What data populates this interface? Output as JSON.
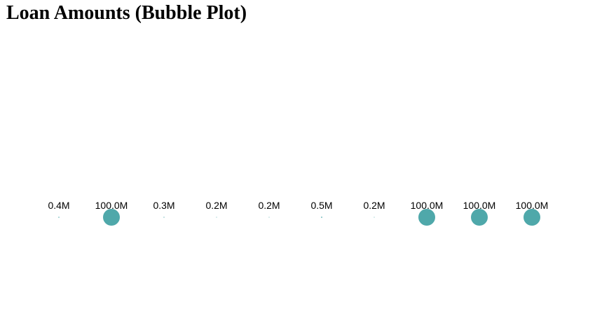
{
  "page": {
    "title": "Loan Amounts (Bubble Plot)"
  },
  "colors": {
    "bubble": "#4fa8aa",
    "text": "#000000",
    "background": "#ffffff"
  },
  "chart_data": {
    "type": "scatter",
    "title": "Loan Amounts (Bubble Plot)",
    "xlabel": "",
    "ylabel": "",
    "grid": false,
    "legend": "none",
    "points": [
      {
        "label": "0.4M",
        "value": 0.4
      },
      {
        "label": "100.0M",
        "value": 100.0
      },
      {
        "label": "0.3M",
        "value": 0.3
      },
      {
        "label": "0.2M",
        "value": 0.2
      },
      {
        "label": "0.2M",
        "value": 0.2
      },
      {
        "label": "0.5M",
        "value": 0.5
      },
      {
        "label": "0.2M",
        "value": 0.2
      },
      {
        "label": "100.0M",
        "value": 100.0
      },
      {
        "label": "100.0M",
        "value": 100.0
      },
      {
        "label": "100.0M",
        "value": 100.0
      }
    ]
  }
}
